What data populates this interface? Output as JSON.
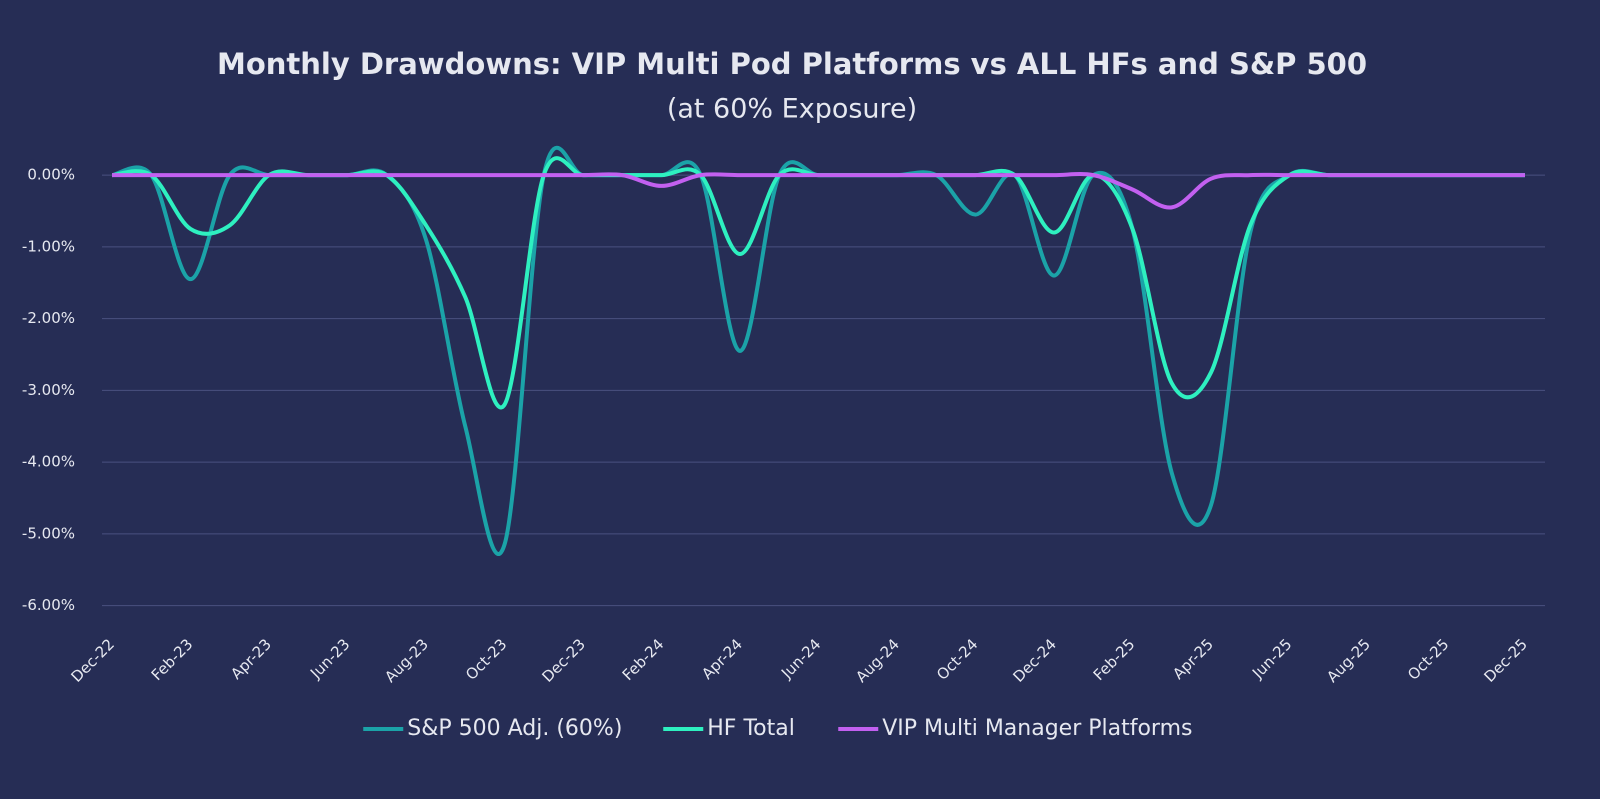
{
  "chart_data": {
    "type": "line",
    "title": "Monthly Drawdowns: VIP Multi Pod Platforms vs ALL HFs and S&P 500",
    "subtitle": "(at 60% Exposure)",
    "categories": [
      "Dec-22",
      null,
      "Feb-23",
      null,
      "Apr-23",
      null,
      "Jun-23",
      null,
      "Aug-23",
      null,
      "Oct-23",
      null,
      "Dec-23",
      null,
      "Feb-24",
      null,
      "Apr-24",
      null,
      "Jun-24",
      null,
      "Aug-24",
      null,
      "Oct-24",
      null,
      "Dec-24",
      null,
      "Feb-25",
      null,
      "Apr-25",
      null,
      "Jun-25",
      null,
      "Aug-25",
      null,
      "Oct-25",
      null,
      "Dec-25"
    ],
    "series": [
      {
        "name": "S&P 500 Adj. (60%)",
        "color": "#1ba3a8",
        "values": [
          0,
          0,
          -1.45,
          0,
          0,
          0,
          0,
          0,
          -0.9,
          -3.5,
          -5.15,
          0,
          0,
          0,
          0,
          0,
          -2.45,
          0,
          0,
          0,
          0,
          0,
          -0.55,
          0,
          -1.4,
          0,
          -0.75,
          -4.15,
          -4.6,
          -0.8,
          0,
          0,
          0,
          0,
          0,
          0,
          0
        ]
      },
      {
        "name": "HF Total",
        "color": "#2ef0c0",
        "values": [
          0,
          0,
          -0.75,
          -0.7,
          0,
          0,
          0,
          0,
          -0.7,
          -1.7,
          -3.2,
          0,
          0,
          0,
          0,
          0,
          -1.1,
          0,
          0,
          0,
          0,
          0,
          0,
          0,
          -0.8,
          0,
          -0.75,
          -2.9,
          -2.75,
          -0.7,
          0,
          0,
          0,
          0,
          0,
          0,
          0
        ]
      },
      {
        "name": "VIP Multi Manager Platforms",
        "color": "#c260f0",
        "values": [
          0,
          0,
          0,
          0,
          0,
          0,
          0,
          0,
          0,
          0,
          0,
          0,
          0,
          0,
          -0.15,
          0,
          0,
          0,
          0,
          0,
          0,
          0,
          0,
          0,
          0,
          0,
          -0.2,
          -0.45,
          -0.05,
          0,
          0,
          0,
          0,
          0,
          0,
          0,
          0
        ]
      }
    ],
    "ylim": [
      -6.2,
      0.35
    ],
    "yticks": [
      {
        "value": 0,
        "label": "0.00%"
      },
      {
        "value": -1,
        "label": "-1.00%"
      },
      {
        "value": -2,
        "label": "-2.00%"
      },
      {
        "value": -3,
        "label": "-3.00%"
      },
      {
        "value": -4,
        "label": "-4.00%"
      },
      {
        "value": -5,
        "label": "-5.00%"
      },
      {
        "value": -6,
        "label": "-6.00%"
      }
    ],
    "grid": true,
    "legend": "bottom"
  }
}
